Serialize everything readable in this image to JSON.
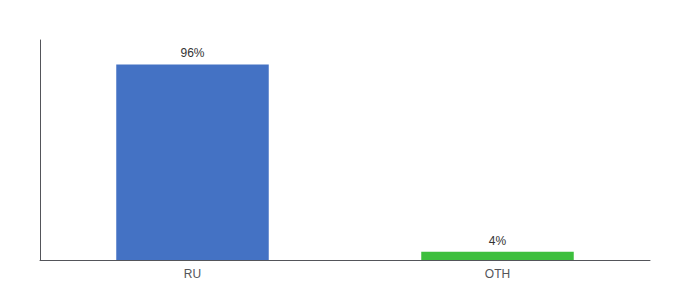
{
  "chart_data": {
    "type": "bar",
    "categories": [
      "RU",
      "OTH"
    ],
    "values": [
      96,
      4
    ],
    "value_labels": [
      "96%",
      "4%"
    ],
    "data_labels": true,
    "colors": [
      "#4472c4",
      "#3dbf3d"
    ],
    "ylim": [
      0,
      108
    ],
    "tick_labels": "x",
    "grid": false
  }
}
